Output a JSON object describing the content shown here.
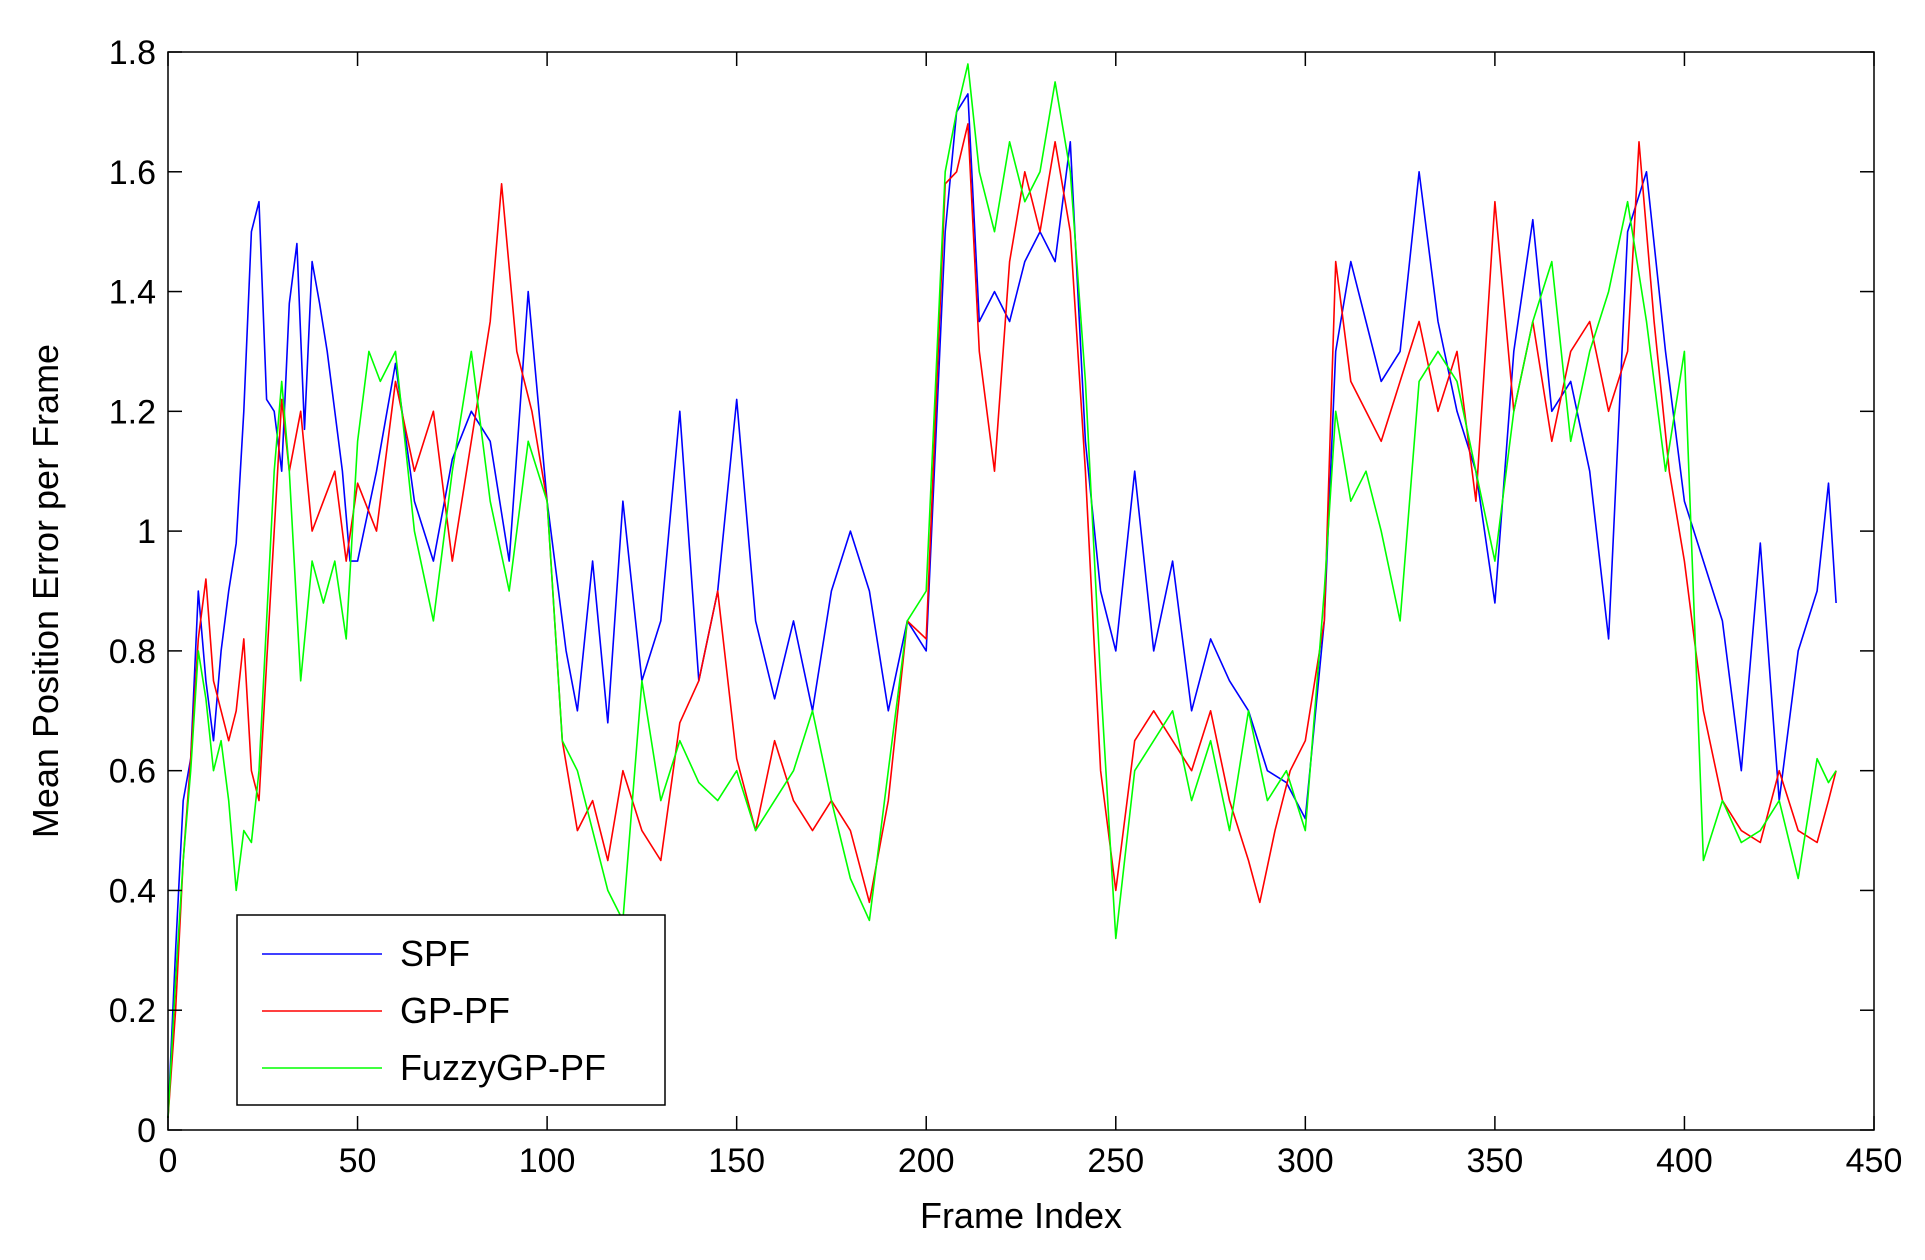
{
  "chart_data": {
    "type": "line",
    "xlabel": "Frame Index",
    "ylabel": "Mean Position Error per Frame",
    "xlim": [
      0,
      450
    ],
    "ylim": [
      0,
      1.8
    ],
    "xticks": [
      0,
      50,
      100,
      150,
      200,
      250,
      300,
      350,
      400,
      450
    ],
    "yticks": [
      0,
      0.2,
      0.4,
      0.6,
      0.8,
      1,
      1.2,
      1.4,
      1.6,
      1.8
    ],
    "xtick_labels": [
      "0",
      "50",
      "100",
      "150",
      "200",
      "250",
      "300",
      "350",
      "400",
      "450"
    ],
    "ytick_labels": [
      "0",
      "0.2",
      "0.4",
      "0.6",
      "0.8",
      "1",
      "1.2",
      "1.4",
      "1.6",
      "1.8"
    ],
    "grid": false,
    "legend_position": "bottom-left",
    "series": [
      {
        "name": "SPF",
        "color": "#0000ff",
        "x": [
          0,
          2,
          4,
          6,
          8,
          10,
          12,
          14,
          16,
          18,
          20,
          22,
          24,
          26,
          28,
          30,
          32,
          34,
          36,
          38,
          40,
          42,
          44,
          46,
          48,
          50,
          55,
          60,
          65,
          70,
          75,
          80,
          85,
          90,
          95,
          100,
          105,
          108,
          112,
          116,
          120,
          125,
          130,
          135,
          140,
          145,
          150,
          155,
          160,
          165,
          170,
          175,
          180,
          185,
          190,
          195,
          200,
          205,
          208,
          211,
          214,
          218,
          222,
          226,
          230,
          234,
          238,
          242,
          246,
          250,
          255,
          260,
          265,
          270,
          275,
          280,
          285,
          290,
          295,
          300,
          305,
          308,
          312,
          316,
          320,
          325,
          330,
          335,
          340,
          345,
          350,
          355,
          360,
          365,
          370,
          375,
          380,
          385,
          390,
          395,
          400,
          405,
          410,
          415,
          420,
          425,
          430,
          435,
          438,
          440
        ],
        "values": [
          0.02,
          0.3,
          0.55,
          0.62,
          0.9,
          0.75,
          0.65,
          0.8,
          0.9,
          0.98,
          1.2,
          1.5,
          1.55,
          1.22,
          1.2,
          1.1,
          1.38,
          1.48,
          1.17,
          1.45,
          1.38,
          1.3,
          1.2,
          1.1,
          0.95,
          0.95,
          1.1,
          1.28,
          1.05,
          0.95,
          1.12,
          1.2,
          1.15,
          0.95,
          1.4,
          1.05,
          0.8,
          0.7,
          0.95,
          0.68,
          1.05,
          0.75,
          0.85,
          1.2,
          0.75,
          0.9,
          1.22,
          0.85,
          0.72,
          0.85,
          0.7,
          0.9,
          1.0,
          0.9,
          0.7,
          0.85,
          0.8,
          1.5,
          1.7,
          1.73,
          1.35,
          1.4,
          1.35,
          1.45,
          1.5,
          1.45,
          1.65,
          1.15,
          0.9,
          0.8,
          1.1,
          0.8,
          0.95,
          0.7,
          0.82,
          0.75,
          0.7,
          0.6,
          0.58,
          0.52,
          0.85,
          1.3,
          1.45,
          1.35,
          1.25,
          1.3,
          1.6,
          1.35,
          1.2,
          1.1,
          0.88,
          1.3,
          1.52,
          1.2,
          1.25,
          1.1,
          0.82,
          1.5,
          1.6,
          1.3,
          1.05,
          0.95,
          0.85,
          0.6,
          0.98,
          0.55,
          0.8,
          0.9,
          1.08,
          0.88
        ]
      },
      {
        "name": "GP-PF",
        "color": "#ff0000",
        "x": [
          0,
          2,
          4,
          6,
          8,
          10,
          12,
          14,
          16,
          18,
          20,
          22,
          24,
          26,
          28,
          30,
          32,
          35,
          38,
          41,
          44,
          47,
          50,
          55,
          60,
          65,
          70,
          75,
          80,
          85,
          88,
          92,
          96,
          100,
          104,
          108,
          112,
          116,
          120,
          125,
          130,
          135,
          140,
          145,
          150,
          155,
          160,
          165,
          170,
          175,
          180,
          185,
          190,
          195,
          200,
          205,
          208,
          211,
          214,
          218,
          222,
          226,
          230,
          234,
          238,
          242,
          246,
          250,
          255,
          260,
          265,
          270,
          275,
          280,
          285,
          288,
          292,
          296,
          300,
          305,
          308,
          312,
          316,
          320,
          325,
          330,
          335,
          340,
          345,
          350,
          355,
          360,
          365,
          370,
          375,
          380,
          385,
          388,
          392,
          396,
          400,
          405,
          410,
          415,
          420,
          425,
          430,
          435,
          438,
          440
        ],
        "values": [
          0.02,
          0.2,
          0.45,
          0.62,
          0.82,
          0.92,
          0.75,
          0.7,
          0.65,
          0.7,
          0.82,
          0.6,
          0.55,
          0.78,
          1.0,
          1.22,
          1.1,
          1.2,
          1.0,
          1.05,
          1.1,
          0.95,
          1.08,
          1.0,
          1.25,
          1.1,
          1.2,
          0.95,
          1.15,
          1.35,
          1.58,
          1.3,
          1.2,
          1.05,
          0.65,
          0.5,
          0.55,
          0.45,
          0.6,
          0.5,
          0.45,
          0.68,
          0.75,
          0.9,
          0.62,
          0.5,
          0.65,
          0.55,
          0.5,
          0.55,
          0.5,
          0.38,
          0.55,
          0.85,
          0.82,
          1.58,
          1.6,
          1.68,
          1.3,
          1.1,
          1.45,
          1.6,
          1.5,
          1.65,
          1.5,
          1.1,
          0.6,
          0.4,
          0.65,
          0.7,
          0.65,
          0.6,
          0.7,
          0.55,
          0.45,
          0.38,
          0.5,
          0.6,
          0.65,
          0.85,
          1.45,
          1.25,
          1.2,
          1.15,
          1.25,
          1.35,
          1.2,
          1.3,
          1.05,
          1.55,
          1.2,
          1.35,
          1.15,
          1.3,
          1.35,
          1.2,
          1.3,
          1.65,
          1.35,
          1.1,
          0.95,
          0.7,
          0.55,
          0.5,
          0.48,
          0.6,
          0.5,
          0.48,
          0.55,
          0.6
        ]
      },
      {
        "name": "FuzzyGP-PF",
        "color": "#00ff00",
        "x": [
          0,
          2,
          4,
          6,
          8,
          10,
          12,
          14,
          16,
          18,
          20,
          22,
          24,
          26,
          28,
          30,
          32,
          35,
          38,
          41,
          44,
          47,
          50,
          53,
          56,
          60,
          65,
          70,
          75,
          80,
          85,
          90,
          95,
          100,
          104,
          108,
          112,
          116,
          120,
          125,
          130,
          135,
          140,
          145,
          150,
          155,
          160,
          165,
          170,
          175,
          180,
          185,
          190,
          195,
          200,
          205,
          208,
          211,
          214,
          218,
          222,
          226,
          230,
          234,
          238,
          242,
          246,
          250,
          255,
          260,
          265,
          270,
          275,
          280,
          285,
          290,
          295,
          300,
          305,
          308,
          312,
          316,
          320,
          325,
          330,
          335,
          340,
          345,
          350,
          355,
          360,
          365,
          370,
          375,
          380,
          385,
          390,
          395,
          400,
          405,
          410,
          415,
          420,
          425,
          430,
          435,
          438,
          440
        ],
        "values": [
          0.02,
          0.25,
          0.45,
          0.6,
          0.8,
          0.72,
          0.6,
          0.65,
          0.55,
          0.4,
          0.5,
          0.48,
          0.6,
          0.85,
          1.1,
          1.25,
          1.1,
          0.75,
          0.95,
          0.88,
          0.95,
          0.82,
          1.15,
          1.3,
          1.25,
          1.3,
          1.0,
          0.85,
          1.1,
          1.3,
          1.05,
          0.9,
          1.15,
          1.05,
          0.65,
          0.6,
          0.5,
          0.4,
          0.35,
          0.75,
          0.55,
          0.65,
          0.58,
          0.55,
          0.6,
          0.5,
          0.55,
          0.6,
          0.7,
          0.55,
          0.42,
          0.35,
          0.6,
          0.85,
          0.9,
          1.6,
          1.7,
          1.78,
          1.6,
          1.5,
          1.65,
          1.55,
          1.6,
          1.75,
          1.6,
          1.25,
          0.75,
          0.32,
          0.6,
          0.65,
          0.7,
          0.55,
          0.65,
          0.5,
          0.7,
          0.55,
          0.6,
          0.5,
          0.9,
          1.2,
          1.05,
          1.1,
          1.0,
          0.85,
          1.25,
          1.3,
          1.25,
          1.1,
          0.95,
          1.2,
          1.35,
          1.45,
          1.15,
          1.3,
          1.4,
          1.55,
          1.35,
          1.1,
          1.3,
          0.45,
          0.55,
          0.48,
          0.5,
          0.55,
          0.42,
          0.62,
          0.58,
          0.6
        ]
      }
    ]
  }
}
